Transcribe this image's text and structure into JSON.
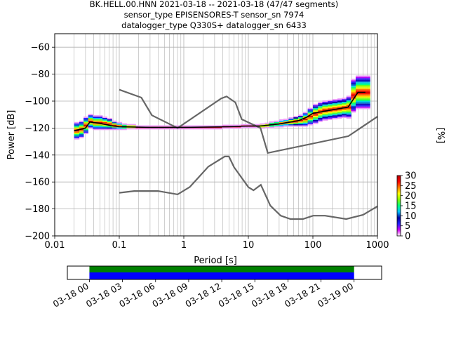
{
  "title": {
    "line1": "BK.HELL.00.HNN   2021-03-18 -- 2021-03-18  (47/47 segments)",
    "line2": "sensor_type EPISENSORES-T sensor_sn 7974",
    "line3": "datalogger_type Q330S+ datalogger_sn 6433"
  },
  "chart_data": {
    "type": "heatmap",
    "xlabel": "Period [s]",
    "ylabel": "Power [dB]",
    "x_scale": "log",
    "xlim": [
      0.01,
      1000
    ],
    "ylim": [
      -200,
      -50
    ],
    "x_ticks": [
      0.01,
      0.1,
      1,
      10,
      100,
      1000
    ],
    "x_tick_labels": [
      "0.01",
      "0.1",
      "1",
      "10",
      "100",
      "1000"
    ],
    "y_ticks": [
      -200,
      -180,
      -160,
      -140,
      -120,
      -100,
      -80,
      -60
    ],
    "y_tick_labels": [
      "−200",
      "−180",
      "−160",
      "−140",
      "−120",
      "−100",
      "−80",
      "−60"
    ],
    "grid": true,
    "colorbar": {
      "label": "[%]",
      "min": 0,
      "max": 30,
      "ticks": [
        0,
        5,
        10,
        15,
        20,
        25,
        30
      ],
      "tick_labels": [
        "0",
        "5",
        "10",
        "15",
        "20",
        "25",
        "30"
      ],
      "colormap_stops": [
        "#ffffff",
        "#d300f2",
        "#2020ff",
        "#0000a0",
        "#00bfff",
        "#00ff80",
        "#80ff00",
        "#ffff00",
        "#ff8000",
        "#ff0000",
        "#b00000"
      ]
    },
    "noise_models": [
      {
        "points": [
          [
            0.1,
            -91.5
          ],
          [
            0.22,
            -97.4
          ],
          [
            0.32,
            -110.5
          ],
          [
            0.8,
            -120
          ],
          [
            3.8,
            -98
          ],
          [
            4.6,
            -96.5
          ],
          [
            6.3,
            -101
          ],
          [
            7.9,
            -113.5
          ],
          [
            15.4,
            -120
          ],
          [
            20,
            -138.5
          ],
          [
            354.8,
            -126
          ],
          [
            1000,
            -111.5
          ]
        ]
      },
      {
        "points": [
          [
            0.1,
            -168
          ],
          [
            0.17,
            -166.7
          ],
          [
            0.4,
            -166.7
          ],
          [
            0.8,
            -169.2
          ],
          [
            1.24,
            -163.7
          ],
          [
            2.4,
            -148.6
          ],
          [
            4.3,
            -141.1
          ],
          [
            5,
            -141.1
          ],
          [
            6,
            -149
          ],
          [
            10,
            -163.8
          ],
          [
            12,
            -166.2
          ],
          [
            15.6,
            -162.1
          ],
          [
            21.9,
            -177.5
          ],
          [
            31.6,
            -185
          ],
          [
            45,
            -187.5
          ],
          [
            70,
            -187.5
          ],
          [
            101,
            -185
          ],
          [
            154,
            -185
          ],
          [
            328,
            -187.5
          ],
          [
            600,
            -184.4
          ],
          [
            1000,
            -178
          ]
        ]
      }
    ],
    "median_curve": {
      "points": [
        [
          0.02,
          -122
        ],
        [
          0.03,
          -120
        ],
        [
          0.035,
          -115.5
        ],
        [
          0.05,
          -116.5
        ],
        [
          0.08,
          -118.5
        ],
        [
          0.1,
          -119
        ],
        [
          0.3,
          -119.5
        ],
        [
          1,
          -119.5
        ],
        [
          5,
          -119
        ],
        [
          10,
          -118.5
        ],
        [
          15,
          -118.5
        ],
        [
          30,
          -117
        ],
        [
          60,
          -114.5
        ],
        [
          80,
          -112
        ],
        [
          100,
          -109
        ],
        [
          200,
          -106.5
        ],
        [
          350,
          -104.5
        ],
        [
          500,
          -93.5
        ],
        [
          650,
          -93.5
        ]
      ]
    },
    "psd_columns_x": [
      0.02,
      0.024,
      0.028,
      0.033,
      0.039,
      0.046,
      0.055,
      0.065,
      0.077,
      0.091,
      0.11,
      0.13,
      0.15,
      0.18,
      0.21,
      0.25,
      0.3,
      0.35,
      0.42,
      0.5,
      0.59,
      0.7,
      0.83,
      1,
      1.2,
      1.4,
      1.7,
      2,
      2.4,
      2.8,
      3.3,
      3.9,
      4.6,
      5.5,
      6.5,
      7.7,
      9.1,
      11,
      13,
      15,
      18,
      21,
      25,
      30,
      35,
      42,
      50,
      59,
      70,
      83,
      100,
      120,
      140,
      170,
      200,
      240,
      280,
      330,
      390,
      460,
      550,
      650
    ],
    "psd_columns_center": [
      -122,
      -121,
      -118,
      -115,
      -116,
      -116,
      -116.5,
      -117,
      -118,
      -118.5,
      -119,
      -119,
      -119,
      -119.5,
      -119.5,
      -119.5,
      -119.5,
      -119.5,
      -119.5,
      -119.5,
      -119.5,
      -119.5,
      -119.5,
      -119.5,
      -119.5,
      -119.5,
      -119.5,
      -119.5,
      -119.5,
      -119.5,
      -119.5,
      -119,
      -119,
      -119,
      -119,
      -118.5,
      -118.5,
      -118.5,
      -118.5,
      -118.5,
      -118,
      -117.5,
      -117,
      -116.5,
      -116,
      -115.5,
      -115,
      -114.5,
      -113.5,
      -111.5,
      -109.5,
      -108,
      -107,
      -106.5,
      -106,
      -105.5,
      -105,
      -104.5,
      -96,
      -93.5,
      -93.5,
      -93.5
    ],
    "psd_columns_spread": [
      6,
      6,
      6,
      5,
      5,
      5,
      4.5,
      4,
      3,
      2.5,
      2,
      1.5,
      1.5,
      1,
      1,
      1,
      1,
      1,
      1,
      1,
      1,
      1,
      1,
      1,
      1,
      1,
      1,
      1,
      1,
      1,
      1,
      1,
      1,
      1,
      1,
      1,
      1,
      1,
      1,
      1.5,
      1.5,
      2,
      2,
      2.5,
      2.5,
      3,
      3.5,
      4,
      5,
      6,
      7,
      7,
      7,
      7,
      7,
      7,
      7,
      8,
      12,
      12,
      12,
      12
    ],
    "timeline": {
      "tick_labels": [
        "03-18 00",
        "03-18 03",
        "03-18 06",
        "03-18 09",
        "03-18 12",
        "03-18 15",
        "03-18 18",
        "03-18 21",
        "03-19 00"
      ],
      "xlim_hours": [
        -2,
        26.5
      ],
      "data_hours": [
        0,
        24
      ],
      "bars": [
        {
          "color": "#008000"
        },
        {
          "color": "#0000ff"
        }
      ]
    }
  }
}
